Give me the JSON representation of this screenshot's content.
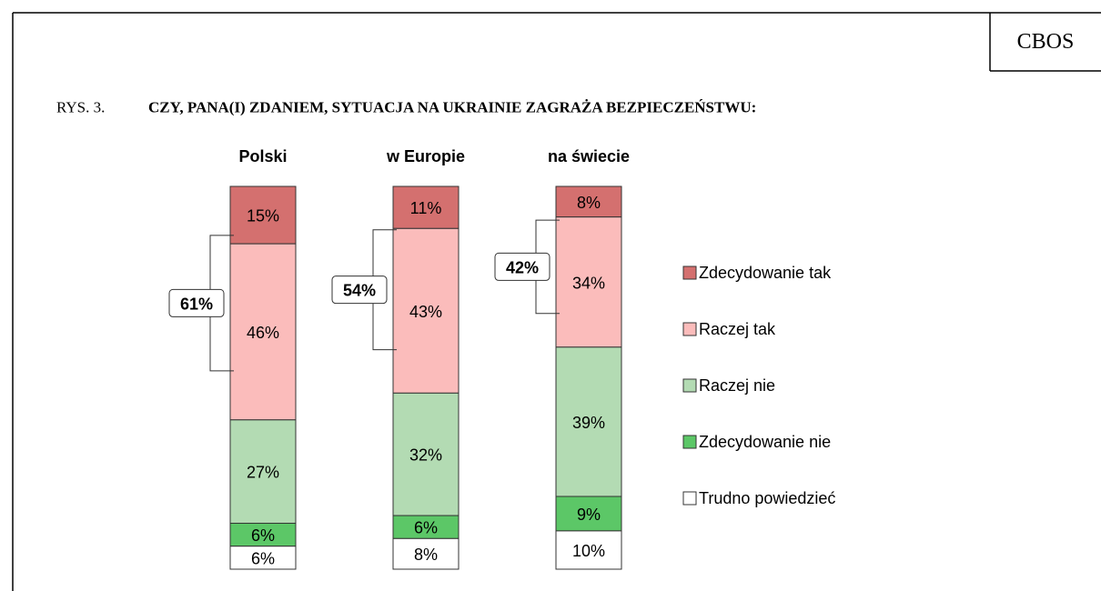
{
  "chart_data": {
    "type": "stacked_bar",
    "source": "CBOS",
    "figure_label": "RYS. 3.",
    "title": "CZY, PANA(I) ZDANIEM, SYTUACJA NA UKRAINIE ZAGRAŻA BEZPIECZEŃSTWU:",
    "categories": [
      "Polski",
      "w Europie",
      "na świecie"
    ],
    "series": [
      {
        "name": "Zdecydowanie tak",
        "color": "#d4706f",
        "values": [
          15,
          11,
          8
        ],
        "value_labels": [
          "15%",
          "11%",
          "8%"
        ]
      },
      {
        "name": "Raczej tak",
        "color": "#fbbcbb",
        "values": [
          46,
          43,
          34
        ],
        "value_labels": [
          "46%",
          "43%",
          "34%"
        ]
      },
      {
        "name": "Raczej nie",
        "color": "#b3dbb3",
        "values": [
          27,
          32,
          39
        ],
        "value_labels": [
          "27%",
          "32%",
          "39%"
        ]
      },
      {
        "name": "Zdecydowanie nie",
        "color": "#5cc767",
        "values": [
          6,
          6,
          9
        ],
        "value_labels": [
          "6%",
          "6%",
          "9%"
        ]
      },
      {
        "name": "Trudno powiedzieć",
        "color": "#ffffff",
        "values": [
          6,
          8,
          10
        ],
        "value_labels": [
          "6%",
          "8%",
          "10%"
        ]
      }
    ],
    "brackets": {
      "values": [
        61,
        54,
        42
      ],
      "value_labels": [
        "61%",
        "54%",
        "42%"
      ]
    }
  }
}
